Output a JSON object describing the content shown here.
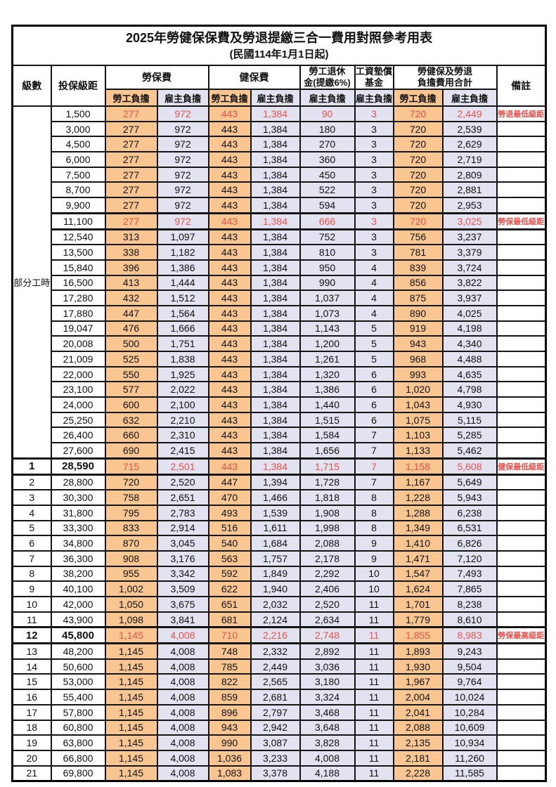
{
  "title": "2025年勞健保保費及勞退提繳三合一費用對照參考用表",
  "subtitle": "(民國114年1月1日起)",
  "header": {
    "level": "級數",
    "bracket": "投保級距",
    "labor_group": "勞保費",
    "health_group": "健保費",
    "pension_line1": "勞工退休",
    "pension_line2": "金(提繳6%)",
    "wage_fund_line1": "工資墊償",
    "wage_fund_line2": "基金",
    "total_line1": "勞健保及勞退",
    "total_line2": "負擔費用合計",
    "remark": "備註",
    "employee": "勞工負擔",
    "employer": "雇主負擔"
  },
  "side": {
    "part_time": "部分工時",
    "part_time_rowspan": 23
  },
  "colors": {
    "employee_bg": "#F9C590",
    "employer_bg": "#E2E2F0",
    "highlight_text": "#F0504B",
    "border": "#151515"
  },
  "rows": [
    {
      "bracket": "1,500",
      "labor_emp": "277",
      "labor_er": "972",
      "health_emp": "443",
      "health_er": "1,384",
      "pension": "90",
      "wage_fund": "3",
      "total_emp": "720",
      "total_er": "2,449",
      "remark": "勞退最低級距",
      "red": true
    },
    {
      "bracket": "3,000",
      "labor_emp": "277",
      "labor_er": "972",
      "health_emp": "443",
      "health_er": "1,384",
      "pension": "180",
      "wage_fund": "3",
      "total_emp": "720",
      "total_er": "2,539",
      "remark": ""
    },
    {
      "bracket": "4,500",
      "labor_emp": "277",
      "labor_er": "972",
      "health_emp": "443",
      "health_er": "1,384",
      "pension": "270",
      "wage_fund": "3",
      "total_emp": "720",
      "total_er": "2,629",
      "remark": ""
    },
    {
      "bracket": "6,000",
      "labor_emp": "277",
      "labor_er": "972",
      "health_emp": "443",
      "health_er": "1,384",
      "pension": "360",
      "wage_fund": "3",
      "total_emp": "720",
      "total_er": "2,719",
      "remark": ""
    },
    {
      "bracket": "7,500",
      "labor_emp": "277",
      "labor_er": "972",
      "health_emp": "443",
      "health_er": "1,384",
      "pension": "450",
      "wage_fund": "3",
      "total_emp": "720",
      "total_er": "2,809",
      "remark": ""
    },
    {
      "bracket": "8,700",
      "labor_emp": "277",
      "labor_er": "972",
      "health_emp": "443",
      "health_er": "1,384",
      "pension": "522",
      "wage_fund": "3",
      "total_emp": "720",
      "total_er": "2,881",
      "remark": ""
    },
    {
      "bracket": "9,900",
      "labor_emp": "277",
      "labor_er": "972",
      "health_emp": "443",
      "health_er": "1,384",
      "pension": "594",
      "wage_fund": "3",
      "total_emp": "720",
      "total_er": "2,953",
      "remark": ""
    },
    {
      "bracket": "11,100",
      "labor_emp": "277",
      "labor_er": "972",
      "health_emp": "443",
      "health_er": "1,384",
      "pension": "666",
      "wage_fund": "3",
      "total_emp": "720",
      "total_er": "3,025",
      "remark": "勞保最低級距",
      "red": true,
      "thick": true
    },
    {
      "bracket": "12,540",
      "labor_emp": "313",
      "labor_er": "1,097",
      "health_emp": "443",
      "health_er": "1,384",
      "pension": "752",
      "wage_fund": "3",
      "total_emp": "756",
      "total_er": "3,237",
      "remark": ""
    },
    {
      "bracket": "13,500",
      "labor_emp": "338",
      "labor_er": "1,182",
      "health_emp": "443",
      "health_er": "1,384",
      "pension": "810",
      "wage_fund": "3",
      "total_emp": "781",
      "total_er": "3,379",
      "remark": ""
    },
    {
      "bracket": "15,840",
      "labor_emp": "396",
      "labor_er": "1,386",
      "health_emp": "443",
      "health_er": "1,384",
      "pension": "950",
      "wage_fund": "4",
      "total_emp": "839",
      "total_er": "3,724",
      "remark": ""
    },
    {
      "bracket": "16,500",
      "labor_emp": "413",
      "labor_er": "1,444",
      "health_emp": "443",
      "health_er": "1,384",
      "pension": "990",
      "wage_fund": "4",
      "total_emp": "856",
      "total_er": "3,822",
      "remark": ""
    },
    {
      "bracket": "17,280",
      "labor_emp": "432",
      "labor_er": "1,512",
      "health_emp": "443",
      "health_er": "1,384",
      "pension": "1,037",
      "wage_fund": "4",
      "total_emp": "875",
      "total_er": "3,937",
      "remark": ""
    },
    {
      "bracket": "17,880",
      "labor_emp": "447",
      "labor_er": "1,564",
      "health_emp": "443",
      "health_er": "1,384",
      "pension": "1,073",
      "wage_fund": "4",
      "total_emp": "890",
      "total_er": "4,025",
      "remark": ""
    },
    {
      "bracket": "19,047",
      "labor_emp": "476",
      "labor_er": "1,666",
      "health_emp": "443",
      "health_er": "1,384",
      "pension": "1,143",
      "wage_fund": "5",
      "total_emp": "919",
      "total_er": "4,198",
      "remark": ""
    },
    {
      "bracket": "20,008",
      "labor_emp": "500",
      "labor_er": "1,751",
      "health_emp": "443",
      "health_er": "1,384",
      "pension": "1,200",
      "wage_fund": "5",
      "total_emp": "943",
      "total_er": "4,340",
      "remark": ""
    },
    {
      "bracket": "21,009",
      "labor_emp": "525",
      "labor_er": "1,838",
      "health_emp": "443",
      "health_er": "1,384",
      "pension": "1,261",
      "wage_fund": "5",
      "total_emp": "968",
      "total_er": "4,488",
      "remark": ""
    },
    {
      "bracket": "22,000",
      "labor_emp": "550",
      "labor_er": "1,925",
      "health_emp": "443",
      "health_er": "1,384",
      "pension": "1,320",
      "wage_fund": "6",
      "total_emp": "993",
      "total_er": "4,635",
      "remark": ""
    },
    {
      "bracket": "23,100",
      "labor_emp": "577",
      "labor_er": "2,022",
      "health_emp": "443",
      "health_er": "1,384",
      "pension": "1,386",
      "wage_fund": "6",
      "total_emp": "1,020",
      "total_er": "4,798",
      "remark": ""
    },
    {
      "bracket": "24,000",
      "labor_emp": "600",
      "labor_er": "2,100",
      "health_emp": "443",
      "health_er": "1,384",
      "pension": "1,440",
      "wage_fund": "6",
      "total_emp": "1,043",
      "total_er": "4,930",
      "remark": ""
    },
    {
      "bracket": "25,250",
      "labor_emp": "632",
      "labor_er": "2,210",
      "health_emp": "443",
      "health_er": "1,384",
      "pension": "1,515",
      "wage_fund": "6",
      "total_emp": "1,075",
      "total_er": "5,115",
      "remark": ""
    },
    {
      "bracket": "26,400",
      "labor_emp": "660",
      "labor_er": "2,310",
      "health_emp": "443",
      "health_er": "1,384",
      "pension": "1,584",
      "wage_fund": "7",
      "total_emp": "1,103",
      "total_er": "5,285",
      "remark": ""
    },
    {
      "bracket": "27,600",
      "labor_emp": "690",
      "labor_er": "2,415",
      "health_emp": "443",
      "health_er": "1,384",
      "pension": "1,656",
      "wage_fund": "7",
      "total_emp": "1,133",
      "total_er": "5,462",
      "remark": ""
    },
    {
      "level": "1",
      "bracket": "28,590",
      "labor_emp": "715",
      "labor_er": "2,501",
      "health_emp": "443",
      "health_er": "1,384",
      "pension": "1,715",
      "wage_fund": "7",
      "total_emp": "1,158",
      "total_er": "5,608",
      "remark": "健保最低級距",
      "red": true,
      "bold": true,
      "thick": true
    },
    {
      "level": "2",
      "bracket": "28,800",
      "labor_emp": "720",
      "labor_er": "2,520",
      "health_emp": "447",
      "health_er": "1,394",
      "pension": "1,728",
      "wage_fund": "7",
      "total_emp": "1,167",
      "total_er": "5,649",
      "remark": ""
    },
    {
      "level": "3",
      "bracket": "30,300",
      "labor_emp": "758",
      "labor_er": "2,651",
      "health_emp": "470",
      "health_er": "1,466",
      "pension": "1,818",
      "wage_fund": "8",
      "total_emp": "1,228",
      "total_er": "5,943",
      "remark": ""
    },
    {
      "level": "4",
      "bracket": "31,800",
      "labor_emp": "795",
      "labor_er": "2,783",
      "health_emp": "493",
      "health_er": "1,539",
      "pension": "1,908",
      "wage_fund": "8",
      "total_emp": "1,288",
      "total_er": "6,238",
      "remark": ""
    },
    {
      "level": "5",
      "bracket": "33,300",
      "labor_emp": "833",
      "labor_er": "2,914",
      "health_emp": "516",
      "health_er": "1,611",
      "pension": "1,998",
      "wage_fund": "8",
      "total_emp": "1,349",
      "total_er": "6,531",
      "remark": ""
    },
    {
      "level": "6",
      "bracket": "34,800",
      "labor_emp": "870",
      "labor_er": "3,045",
      "health_emp": "540",
      "health_er": "1,684",
      "pension": "2,088",
      "wage_fund": "9",
      "total_emp": "1,410",
      "total_er": "6,826",
      "remark": ""
    },
    {
      "level": "7",
      "bracket": "36,300",
      "labor_emp": "908",
      "labor_er": "3,176",
      "health_emp": "563",
      "health_er": "1,757",
      "pension": "2,178",
      "wage_fund": "9",
      "total_emp": "1,471",
      "total_er": "7,120",
      "remark": ""
    },
    {
      "level": "8",
      "bracket": "38,200",
      "labor_emp": "955",
      "labor_er": "3,342",
      "health_emp": "592",
      "health_er": "1,849",
      "pension": "2,292",
      "wage_fund": "10",
      "total_emp": "1,547",
      "total_er": "7,493",
      "remark": ""
    },
    {
      "level": "9",
      "bracket": "40,100",
      "labor_emp": "1,002",
      "labor_er": "3,509",
      "health_emp": "622",
      "health_er": "1,940",
      "pension": "2,406",
      "wage_fund": "10",
      "total_emp": "1,624",
      "total_er": "7,865",
      "remark": ""
    },
    {
      "level": "10",
      "bracket": "42,000",
      "labor_emp": "1,050",
      "labor_er": "3,675",
      "health_emp": "651",
      "health_er": "2,032",
      "pension": "2,520",
      "wage_fund": "11",
      "total_emp": "1,701",
      "total_er": "8,238",
      "remark": ""
    },
    {
      "level": "11",
      "bracket": "43,900",
      "labor_emp": "1,098",
      "labor_er": "3,841",
      "health_emp": "681",
      "health_er": "2,124",
      "pension": "2,634",
      "wage_fund": "11",
      "total_emp": "1,779",
      "total_er": "8,610",
      "remark": ""
    },
    {
      "level": "12",
      "bracket": "45,800",
      "labor_emp": "1,145",
      "labor_er": "4,008",
      "health_emp": "710",
      "health_er": "2,216",
      "pension": "2,748",
      "wage_fund": "11",
      "total_emp": "1,855",
      "total_er": "8,983",
      "remark": "勞保最高級距",
      "red": true,
      "bold": true,
      "thick": true
    },
    {
      "level": "13",
      "bracket": "48,200",
      "labor_emp": "1,145",
      "labor_er": "4,008",
      "health_emp": "748",
      "health_er": "2,332",
      "pension": "2,892",
      "wage_fund": "11",
      "total_emp": "1,893",
      "total_er": "9,243",
      "remark": ""
    },
    {
      "level": "14",
      "bracket": "50,600",
      "labor_emp": "1,145",
      "labor_er": "4,008",
      "health_emp": "785",
      "health_er": "2,449",
      "pension": "3,036",
      "wage_fund": "11",
      "total_emp": "1,930",
      "total_er": "9,504",
      "remark": ""
    },
    {
      "level": "15",
      "bracket": "53,000",
      "labor_emp": "1,145",
      "labor_er": "4,008",
      "health_emp": "822",
      "health_er": "2,565",
      "pension": "3,180",
      "wage_fund": "11",
      "total_emp": "1,967",
      "total_er": "9,764",
      "remark": ""
    },
    {
      "level": "16",
      "bracket": "55,400",
      "labor_emp": "1,145",
      "labor_er": "4,008",
      "health_emp": "859",
      "health_er": "2,681",
      "pension": "3,324",
      "wage_fund": "11",
      "total_emp": "2,004",
      "total_er": "10,024",
      "remark": ""
    },
    {
      "level": "17",
      "bracket": "57,800",
      "labor_emp": "1,145",
      "labor_er": "4,008",
      "health_emp": "896",
      "health_er": "2,797",
      "pension": "3,468",
      "wage_fund": "11",
      "total_emp": "2,041",
      "total_er": "10,284",
      "remark": ""
    },
    {
      "level": "18",
      "bracket": "60,800",
      "labor_emp": "1,145",
      "labor_er": "4,008",
      "health_emp": "943",
      "health_er": "2,942",
      "pension": "3,648",
      "wage_fund": "11",
      "total_emp": "2,088",
      "total_er": "10,609",
      "remark": ""
    },
    {
      "level": "19",
      "bracket": "63,800",
      "labor_emp": "1,145",
      "labor_er": "4,008",
      "health_emp": "990",
      "health_er": "3,087",
      "pension": "3,828",
      "wage_fund": "11",
      "total_emp": "2,135",
      "total_er": "10,934",
      "remark": ""
    },
    {
      "level": "20",
      "bracket": "66,800",
      "labor_emp": "1,145",
      "labor_er": "4,008",
      "health_emp": "1,036",
      "health_er": "3,233",
      "pension": "4,008",
      "wage_fund": "11",
      "total_emp": "2,181",
      "total_er": "11,260",
      "remark": ""
    },
    {
      "level": "21",
      "bracket": "69,800",
      "labor_emp": "1,145",
      "labor_er": "4,008",
      "health_emp": "1,083",
      "health_er": "3,378",
      "pension": "4,188",
      "wage_fund": "11",
      "total_emp": "2,228",
      "total_er": "11,585",
      "remark": ""
    }
  ]
}
